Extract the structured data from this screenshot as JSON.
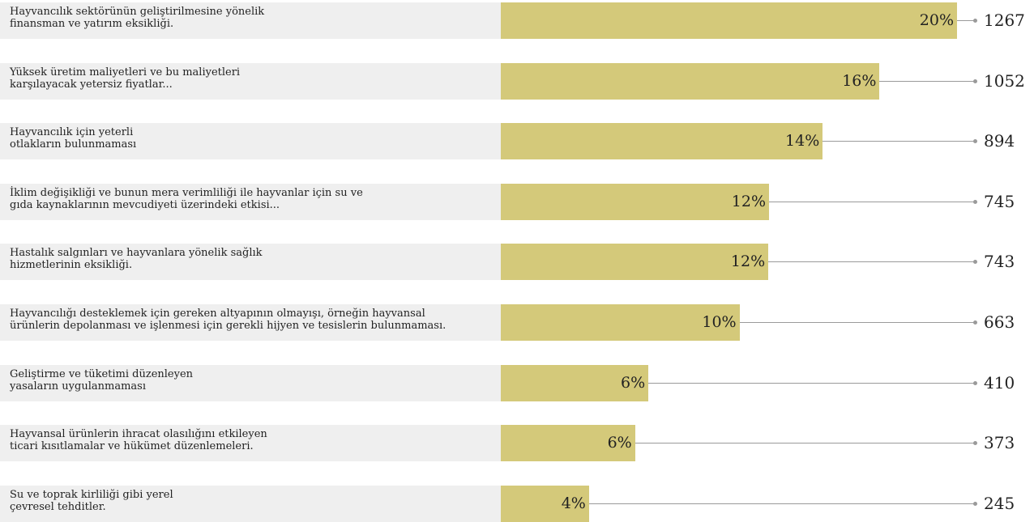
{
  "chart_data": {
    "type": "bar",
    "orientation": "horizontal",
    "categories": [
      "Hayvancılık sektörünün geliştirilmesine yönelik\nfinansman ve yatırım eksikliği.",
      "Yüksek üretim maliyetleri ve bu maliyetleri\nkarşılayacak yetersiz fiyatlar...",
      "Hayvancılık için yeterli\notlakların bulunmaması",
      "İklim değişikliği ve bunun mera verimliliği ile hayvanlar için su ve\ngıda kaynaklarının mevcudiyeti üzerindeki etkisi...",
      "Hastalık salgınları ve hayvanlara yönelik sağlık\nhizmetlerinin eksikliği.",
      "Hayvancılığı desteklemek için gereken altyapının olmayışı, örneğin hayvansal\nürünlerin depolanması ve işlenmesi için gerekli hijyen ve tesislerin bulunmaması.",
      "Geliştirme ve tüketimi düzenleyen\nyasaların uygulanmaması",
      "Hayvansal ürünlerin ihracat olasılığını etkileyen\nticari kısıtlamalar ve hükümet düzenlemeleri.",
      "Su ve toprak kirliliği gibi yerel\nçevresel tehditler."
    ],
    "percent_labels": [
      "20%",
      "16%",
      "14%",
      "12%",
      "12%",
      "10%",
      "6%",
      "6%",
      "4%"
    ],
    "values": [
      1267,
      1052,
      894,
      745,
      743,
      663,
      410,
      373,
      245
    ],
    "colors": {
      "bar": "#d4c97a",
      "label_bg": "#efefef",
      "leader": "#9a9a9a"
    }
  }
}
